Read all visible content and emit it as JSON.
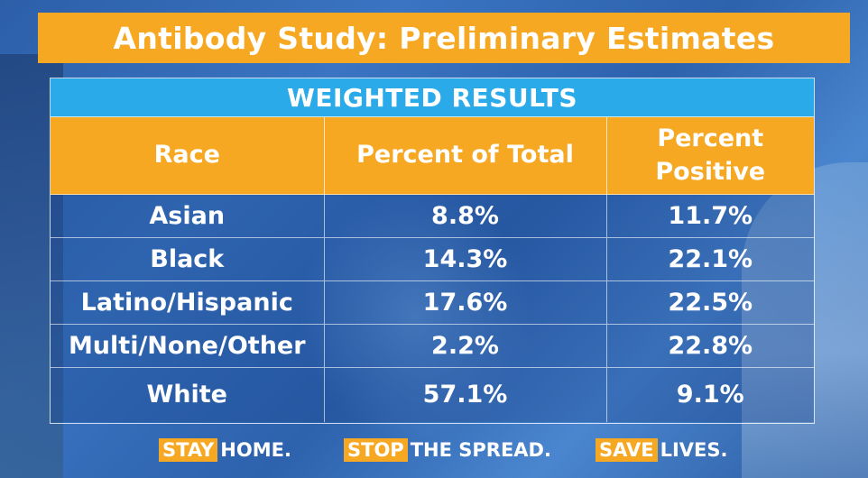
{
  "title": "Antibody Study: Preliminary Estimates",
  "subtitle": "WEIGHTED RESULTS",
  "table": {
    "headers": [
      "Race",
      "Percent of Total",
      "Percent Positive"
    ],
    "rows": [
      [
        "Asian",
        "8.8%",
        "11.7%"
      ],
      [
        "Black",
        "14.3%",
        "22.1%"
      ],
      [
        "Latino/Hispanic",
        "17.6%",
        "22.5%"
      ],
      [
        "Multi/None/Other",
        "2.2%",
        "22.8%"
      ],
      [
        "White",
        "57.1%",
        "9.1%"
      ]
    ]
  },
  "footer": {
    "slogan1_highlight": "STAY",
    "slogan1_rest": "HOME.",
    "slogan2_highlight": "STOP",
    "slogan2_rest": "THE SPREAD.",
    "slogan3_highlight": "SAVE",
    "slogan3_rest": "LIVES."
  },
  "colors": {
    "accent_orange": "#f7a823",
    "subhead_blue": "#2aaae8",
    "background_blue": "#2f66b0"
  }
}
